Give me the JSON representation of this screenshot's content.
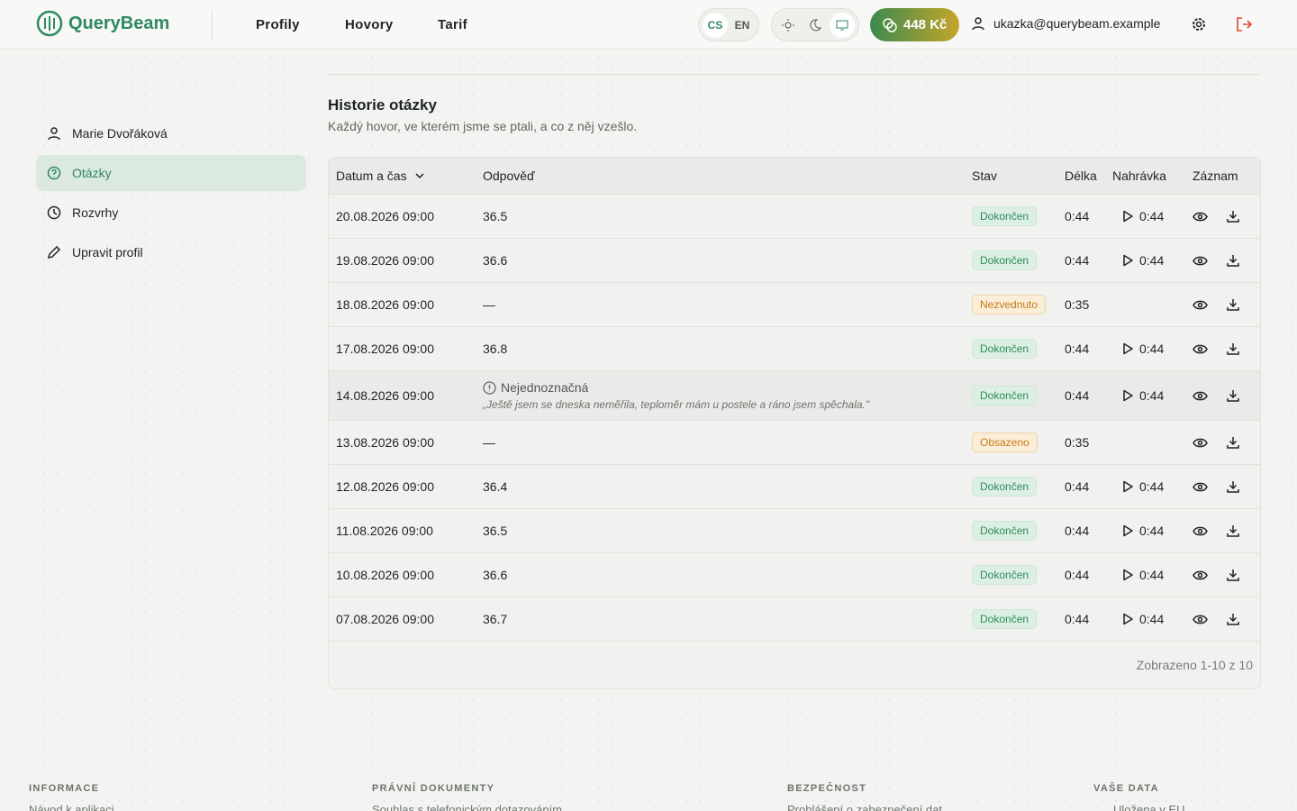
{
  "header": {
    "brand": "QueryBeam",
    "nav": [
      "Profily",
      "Hovory",
      "Tarif"
    ],
    "languages": [
      "CS",
      "EN"
    ],
    "credit": "448 Kč",
    "email": "ukazka@querybeam.example"
  },
  "sidebar": {
    "items": [
      "Marie Dvořáková",
      "Otázky",
      "Rozvrhy",
      "Upravit profil"
    ]
  },
  "section": {
    "title": "Historie otázky",
    "subtitle": "Každý hovor, ve kterém jsme se ptali, a co z něj vzešlo."
  },
  "table": {
    "columns": [
      "Datum a čas",
      "Odpověď",
      "Stav",
      "Délka",
      "Nahrávka",
      "Záznam"
    ],
    "rows": [
      {
        "date": "20.08.2026 09:00",
        "answer": "36.5",
        "status": "Dokončen",
        "length": "0:44",
        "recording": "0:44"
      },
      {
        "date": "19.08.2026 09:00",
        "answer": "36.6",
        "status": "Dokončen",
        "length": "0:44",
        "recording": "0:44"
      },
      {
        "date": "18.08.2026 09:00",
        "answer": "—",
        "status": "Nezvednuto",
        "length": "0:35",
        "recording": null
      },
      {
        "date": "17.08.2026 09:00",
        "answer": "36.8",
        "status": "Dokončen",
        "length": "0:44",
        "recording": "0:44"
      },
      {
        "date": "14.08.2026 09:00",
        "answer": {
          "label": "Nejednoznačná",
          "quote": "„Ještě jsem se dneska neměřila, teploměr mám u postele a ráno jsem spěchala.\""
        },
        "status": "Dokončen",
        "length": "0:44",
        "recording": "0:44"
      },
      {
        "date": "13.08.2026 09:00",
        "answer": "—",
        "status": "Obsazeno",
        "length": "0:35",
        "recording": null
      },
      {
        "date": "12.08.2026 09:00",
        "answer": "36.4",
        "status": "Dokončen",
        "length": "0:44",
        "recording": "0:44"
      },
      {
        "date": "11.08.2026 09:00",
        "answer": "36.5",
        "status": "Dokončen",
        "length": "0:44",
        "recording": "0:44"
      },
      {
        "date": "10.08.2026 09:00",
        "answer": "36.6",
        "status": "Dokončen",
        "length": "0:44",
        "recording": "0:44"
      },
      {
        "date": "07.08.2026 09:00",
        "answer": "36.7",
        "status": "Dokončen",
        "length": "0:44",
        "recording": "0:44"
      }
    ],
    "summary": "Zobrazeno 1-10 z 10"
  },
  "footer": {
    "columns": [
      {
        "heading": "INFORMACE",
        "link": "Návod k aplikaci"
      },
      {
        "heading": "PRÁVNÍ DOKUMENTY",
        "link": "Souhlas s telefonickým dotazováním"
      },
      {
        "heading": "BEZPEČNOST",
        "link": "Prohlášení o zabezpečení dat"
      },
      {
        "heading": "VAŠE DATA",
        "link": "Uložena v EU"
      }
    ]
  }
}
